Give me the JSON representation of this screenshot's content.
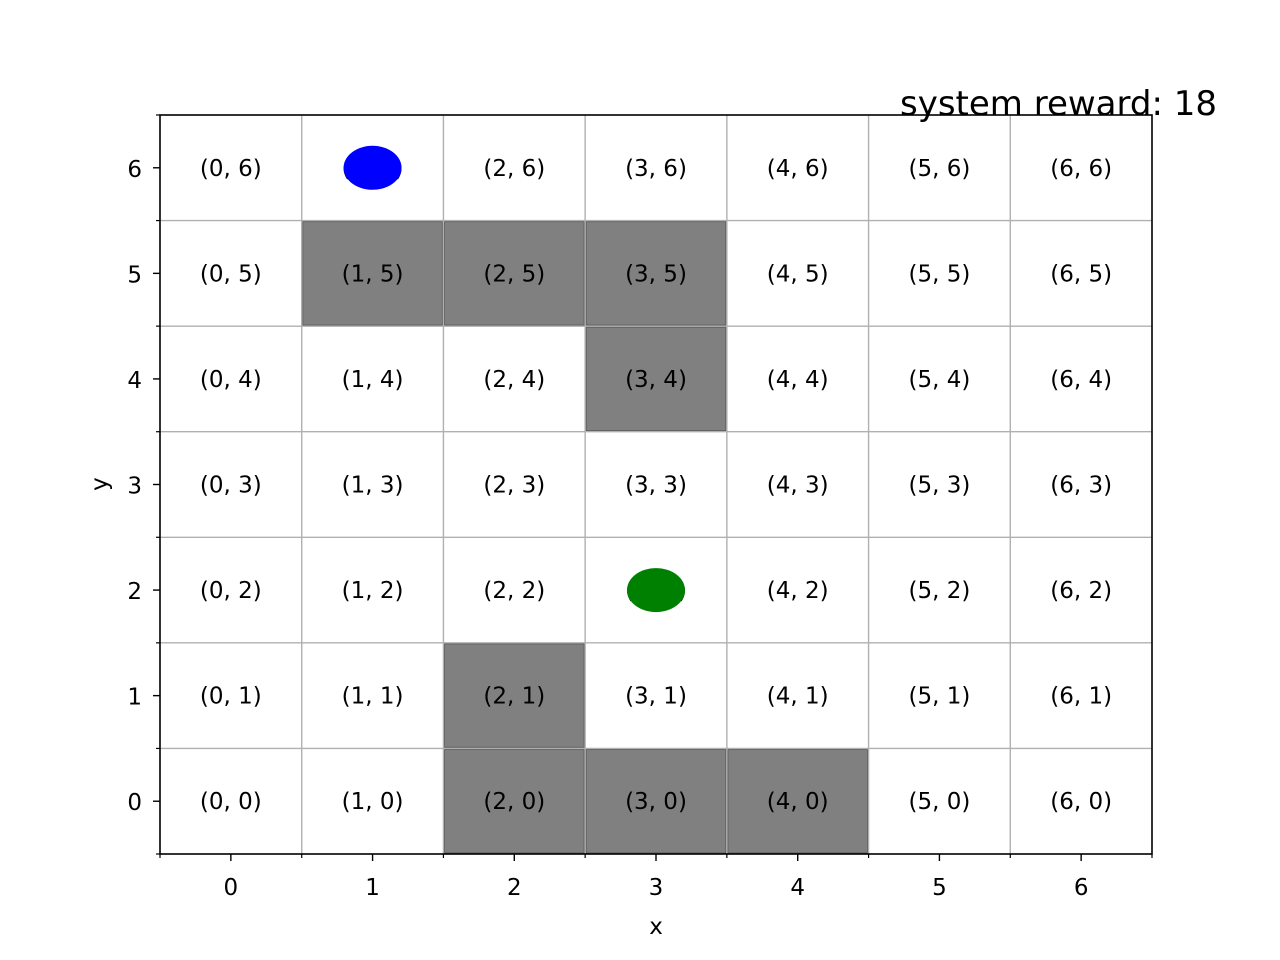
{
  "chart_data": {
    "type": "grid-world",
    "title": "",
    "xlabel": "x",
    "ylabel": "y",
    "xlim": [
      -0.5,
      6.5
    ],
    "ylim": [
      -0.5,
      6.5
    ],
    "x_ticks": [
      "0",
      "1",
      "2",
      "3",
      "4",
      "5",
      "6"
    ],
    "y_ticks": [
      "0",
      "1",
      "2",
      "3",
      "4",
      "5",
      "6"
    ],
    "grid": true,
    "system_reward_text": "system reward: 18",
    "cells": [
      {
        "x": 0,
        "y": 0,
        "label": "(0, 0)"
      },
      {
        "x": 1,
        "y": 0,
        "label": "(1, 0)"
      },
      {
        "x": 2,
        "y": 0,
        "label": "(2, 0)"
      },
      {
        "x": 3,
        "y": 0,
        "label": "(3, 0)"
      },
      {
        "x": 4,
        "y": 0,
        "label": "(4, 0)"
      },
      {
        "x": 5,
        "y": 0,
        "label": "(5, 0)"
      },
      {
        "x": 6,
        "y": 0,
        "label": "(6, 0)"
      },
      {
        "x": 0,
        "y": 1,
        "label": "(0, 1)"
      },
      {
        "x": 1,
        "y": 1,
        "label": "(1, 1)"
      },
      {
        "x": 2,
        "y": 1,
        "label": "(2, 1)"
      },
      {
        "x": 3,
        "y": 1,
        "label": "(3, 1)"
      },
      {
        "x": 4,
        "y": 1,
        "label": "(4, 1)"
      },
      {
        "x": 5,
        "y": 1,
        "label": "(5, 1)"
      },
      {
        "x": 6,
        "y": 1,
        "label": "(6, 1)"
      },
      {
        "x": 0,
        "y": 2,
        "label": "(0, 2)"
      },
      {
        "x": 1,
        "y": 2,
        "label": "(1, 2)"
      },
      {
        "x": 2,
        "y": 2,
        "label": "(2, 2)"
      },
      {
        "x": 3,
        "y": 2,
        "label": "(3, 2)"
      },
      {
        "x": 4,
        "y": 2,
        "label": "(4, 2)"
      },
      {
        "x": 5,
        "y": 2,
        "label": "(5, 2)"
      },
      {
        "x": 6,
        "y": 2,
        "label": "(6, 2)"
      },
      {
        "x": 0,
        "y": 3,
        "label": "(0, 3)"
      },
      {
        "x": 1,
        "y": 3,
        "label": "(1, 3)"
      },
      {
        "x": 2,
        "y": 3,
        "label": "(2, 3)"
      },
      {
        "x": 3,
        "y": 3,
        "label": "(3, 3)"
      },
      {
        "x": 4,
        "y": 3,
        "label": "(4, 3)"
      },
      {
        "x": 5,
        "y": 3,
        "label": "(5, 3)"
      },
      {
        "x": 6,
        "y": 3,
        "label": "(6, 3)"
      },
      {
        "x": 0,
        "y": 4,
        "label": "(0, 4)"
      },
      {
        "x": 1,
        "y": 4,
        "label": "(1, 4)"
      },
      {
        "x": 2,
        "y": 4,
        "label": "(2, 4)"
      },
      {
        "x": 3,
        "y": 4,
        "label": "(3, 4)"
      },
      {
        "x": 4,
        "y": 4,
        "label": "(4, 4)"
      },
      {
        "x": 5,
        "y": 4,
        "label": "(5, 4)"
      },
      {
        "x": 6,
        "y": 4,
        "label": "(6, 4)"
      },
      {
        "x": 0,
        "y": 5,
        "label": "(0, 5)"
      },
      {
        "x": 1,
        "y": 5,
        "label": "(1, 5)"
      },
      {
        "x": 2,
        "y": 5,
        "label": "(2, 5)"
      },
      {
        "x": 3,
        "y": 5,
        "label": "(3, 5)"
      },
      {
        "x": 4,
        "y": 5,
        "label": "(4, 5)"
      },
      {
        "x": 5,
        "y": 5,
        "label": "(5, 5)"
      },
      {
        "x": 6,
        "y": 5,
        "label": "(6, 5)"
      },
      {
        "x": 0,
        "y": 6,
        "label": "(0, 6)"
      },
      {
        "x": 1,
        "y": 6,
        "label": "(1, 6)"
      },
      {
        "x": 2,
        "y": 6,
        "label": "(2, 6)"
      },
      {
        "x": 3,
        "y": 6,
        "label": "(3, 6)"
      },
      {
        "x": 4,
        "y": 6,
        "label": "(4, 6)"
      },
      {
        "x": 5,
        "y": 6,
        "label": "(5, 6)"
      },
      {
        "x": 6,
        "y": 6,
        "label": "(6, 6)"
      }
    ],
    "obstacles": [
      {
        "x": 1,
        "y": 5
      },
      {
        "x": 2,
        "y": 5
      },
      {
        "x": 3,
        "y": 5
      },
      {
        "x": 3,
        "y": 4
      },
      {
        "x": 2,
        "y": 1
      },
      {
        "x": 2,
        "y": 0
      },
      {
        "x": 3,
        "y": 0
      },
      {
        "x": 4,
        "y": 0
      }
    ],
    "agents": [
      {
        "x": 1,
        "y": 6,
        "color": "#0000ff"
      },
      {
        "x": 3,
        "y": 2,
        "color": "#008000"
      }
    ],
    "colors": {
      "obstacle_fill": "#808080",
      "obstacle_edge": "#606060",
      "grid_line": "#b0b0b0",
      "axes_edge": "#000000"
    }
  }
}
